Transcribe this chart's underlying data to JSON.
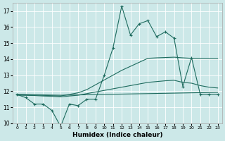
{
  "xlabel": "Humidex (Indice chaleur)",
  "background_color": "#cce8e8",
  "line_color": "#1e6b5e",
  "x": [
    0,
    1,
    2,
    3,
    4,
    5,
    6,
    7,
    8,
    9,
    10,
    11,
    12,
    13,
    14,
    15,
    16,
    17,
    18,
    19,
    20,
    21,
    22,
    23
  ],
  "y_main": [
    11.8,
    11.6,
    11.2,
    11.2,
    10.8,
    9.8,
    11.2,
    11.1,
    11.5,
    11.5,
    13.0,
    14.7,
    17.3,
    15.5,
    16.2,
    16.4,
    15.4,
    15.7,
    15.3,
    12.3,
    14.1,
    11.8,
    11.8,
    11.8
  ],
  "y_trend_high": [
    11.8,
    11.78,
    11.76,
    11.74,
    11.72,
    11.7,
    11.8,
    11.9,
    12.1,
    12.4,
    12.7,
    13.0,
    13.3,
    13.55,
    13.8,
    14.05,
    14.08,
    14.1,
    14.12,
    14.08,
    14.05,
    14.04,
    14.03,
    14.02
  ],
  "y_trend_mid": [
    11.75,
    11.74,
    11.73,
    11.7,
    11.68,
    11.65,
    11.7,
    11.75,
    11.85,
    11.95,
    12.05,
    12.15,
    12.25,
    12.35,
    12.45,
    12.55,
    12.6,
    12.65,
    12.68,
    12.55,
    12.5,
    12.35,
    12.25,
    12.2
  ],
  "y_trend_low": [
    11.8,
    11.79,
    11.78,
    11.77,
    11.76,
    11.75,
    11.76,
    11.77,
    11.78,
    11.79,
    11.8,
    11.81,
    11.82,
    11.83,
    11.84,
    11.85,
    11.86,
    11.87,
    11.88,
    11.89,
    11.9,
    11.91,
    11.92,
    11.93
  ],
  "ylim": [
    10,
    17.5
  ],
  "yticks": [
    10,
    11,
    12,
    13,
    14,
    15,
    16,
    17
  ],
  "xlim": [
    -0.5,
    23.5
  ],
  "xticks": [
    0,
    1,
    2,
    3,
    4,
    5,
    6,
    7,
    8,
    9,
    10,
    11,
    12,
    13,
    14,
    15,
    16,
    17,
    18,
    19,
    20,
    21,
    22,
    23
  ]
}
